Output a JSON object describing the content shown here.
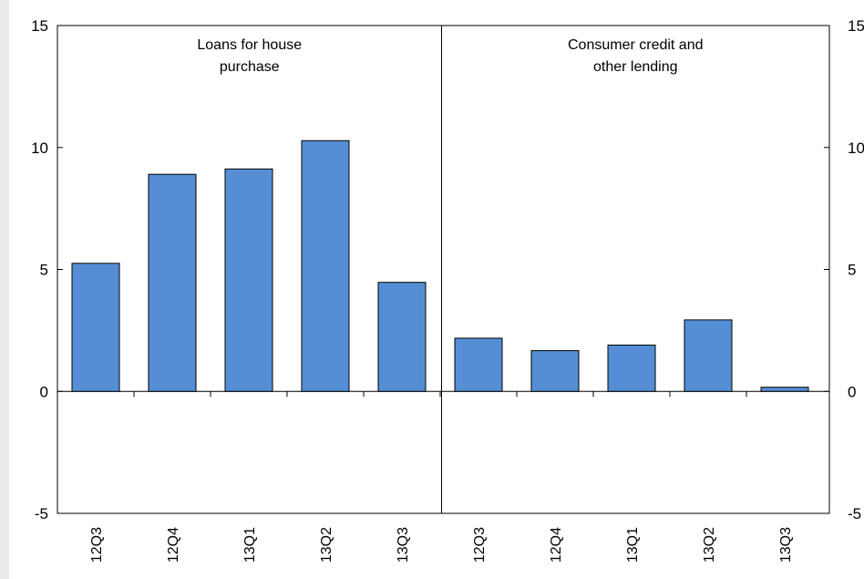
{
  "chart_data": {
    "type": "bar",
    "ylim": [
      -5,
      15
    ],
    "yticks": [
      15,
      10,
      5,
      0,
      -5
    ],
    "right_axis_ticks": [
      "15",
      "10",
      "5",
      "0",
      "-5"
    ],
    "bar_color": "#558ed5",
    "panels": [
      {
        "title_lines": [
          "Loans for house",
          "purchase"
        ],
        "categories": [
          "12Q3",
          "12Q4",
          "13Q1",
          "13Q2",
          "13Q3"
        ],
        "values": [
          5.25,
          8.9,
          9.12,
          10.28,
          4.47
        ]
      },
      {
        "title_lines": [
          "Consumer credit and",
          "other lending"
        ],
        "categories": [
          "12Q3",
          "12Q4",
          "13Q1",
          "13Q2",
          "13Q3"
        ],
        "values": [
          2.18,
          1.67,
          1.9,
          2.93,
          0.17
        ]
      }
    ]
  }
}
